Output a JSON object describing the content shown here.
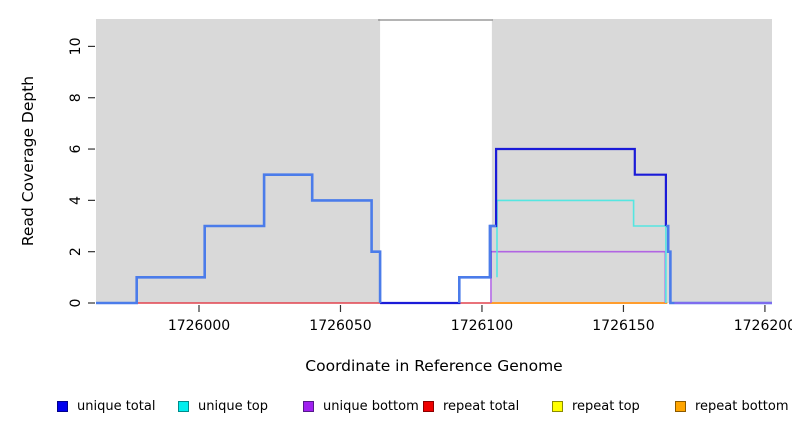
{
  "chart_data": {
    "type": "line",
    "subtype": "step-coverage",
    "title": "",
    "xlabel": "Coordinate in Reference Genome",
    "ylabel": "Read Coverage Depth",
    "xlim": [
      1725963.6,
      1726202.5
    ],
    "ylim": [
      0,
      11.03
    ],
    "x_ticks": {
      "values": [
        1726000,
        1726050,
        1726100,
        1726150,
        1726200
      ],
      "labels": [
        "1726000",
        "1726050",
        "1726100",
        "1726150",
        "1726200"
      ]
    },
    "y_ticks": {
      "values": [
        0,
        2,
        4,
        6,
        8,
        10
      ],
      "labels": [
        "0",
        "2",
        "4",
        "6",
        "8",
        "10"
      ]
    },
    "grid": false,
    "plot_background": "#ffffff",
    "shaded_regions": [
      {
        "name": "left-gray-region",
        "x0": 1725963.6,
        "x1": 1726064,
        "color": "#d9d9d9"
      },
      {
        "name": "right-gray-region",
        "x0": 1726103.5,
        "x1": 1726202.5,
        "color": "#d9d9d9"
      }
    ],
    "gap_region": {
      "name": "white-gap",
      "x0": 1726064,
      "x1": 1726103.5
    },
    "series": [
      {
        "name": "repeat-total",
        "color": "#e2434f",
        "width": 1.6,
        "points": [
          [
            1725963.6,
            0
          ],
          [
            1726103,
            0
          ]
        ]
      },
      {
        "name": "repeat-bottom",
        "color": "#ff9d2e",
        "width": 2,
        "points": [
          [
            1726103,
            0
          ],
          [
            1726165.5,
            0
          ]
        ]
      },
      {
        "name": "unique-bottom",
        "color": "#b165e2",
        "width": 1.6,
        "points": [
          [
            1726103.2,
            0
          ],
          [
            1726103.2,
            2
          ],
          [
            1726164.8,
            2
          ],
          [
            1726164.8,
            0
          ]
        ]
      },
      {
        "name": "unique-top",
        "color": "#55e6e1",
        "width": 1.6,
        "points": [
          [
            1726105.3,
            1
          ],
          [
            1726105.3,
            4
          ],
          [
            1726153.6,
            4
          ],
          [
            1726153.6,
            3
          ],
          [
            1726165,
            3
          ],
          [
            1726165,
            0
          ]
        ]
      },
      {
        "name": "unique-total",
        "color": "#1b1bd8",
        "width": 2.2,
        "points": [
          [
            1726064,
            0
          ],
          [
            1726092,
            0
          ],
          [
            1726092,
            1
          ],
          [
            1726103,
            1
          ],
          [
            1726103,
            3
          ],
          [
            1726105,
            3
          ],
          [
            1726105,
            6
          ],
          [
            1726154,
            6
          ],
          [
            1726154,
            5
          ],
          [
            1726165,
            5
          ],
          [
            1726165,
            3
          ]
        ]
      },
      {
        "name": "total-coverage-left",
        "color": "#4b7cea",
        "width": 2.6,
        "points": [
          [
            1725963.6,
            0
          ],
          [
            1725978,
            0
          ],
          [
            1725978,
            1
          ],
          [
            1726002,
            1
          ],
          [
            1726002,
            3
          ],
          [
            1726023,
            3
          ],
          [
            1726023,
            5
          ],
          [
            1726040,
            5
          ],
          [
            1726040,
            4
          ],
          [
            1726061,
            4
          ],
          [
            1726061,
            2
          ],
          [
            1726064,
            2
          ],
          [
            1726064,
            0
          ]
        ]
      },
      {
        "name": "total-coverage-mid",
        "color": "#4b7cea",
        "width": 2.6,
        "points": [
          [
            1726092,
            0
          ],
          [
            1726092,
            1
          ],
          [
            1726102.8,
            1
          ],
          [
            1726102.8,
            3
          ],
          [
            1726105,
            3
          ]
        ]
      },
      {
        "name": "total-coverage-right",
        "color": "#4b7cea",
        "width": 2.6,
        "points": [
          [
            1726165,
            3
          ],
          [
            1726165.8,
            3
          ],
          [
            1726165.8,
            2
          ],
          [
            1726166.6,
            2
          ],
          [
            1726166.6,
            0
          ],
          [
            1726202.5,
            0
          ]
        ]
      },
      {
        "name": "zero-line-right",
        "color": "#7e6cee",
        "width": 2,
        "points": [
          [
            1726168,
            0
          ],
          [
            1726202.5,
            0
          ]
        ]
      }
    ],
    "legend": {
      "position": "bottom",
      "items": [
        {
          "label": "unique total",
          "fill": "#0000ee",
          "border": "#00008b"
        },
        {
          "label": "unique top",
          "fill": "#00eeee",
          "border": "#008b8b"
        },
        {
          "label": "unique bottom",
          "fill": "#a020f0",
          "border": "#551a8b"
        },
        {
          "label": "repeat total",
          "fill": "#ee0000",
          "border": "#8b0000"
        },
        {
          "label": "repeat top",
          "fill": "#ffff00",
          "border": "#8b8b00"
        },
        {
          "label": "repeat bottom",
          "fill": "#ffa500",
          "border": "#8b5a00"
        }
      ]
    }
  }
}
